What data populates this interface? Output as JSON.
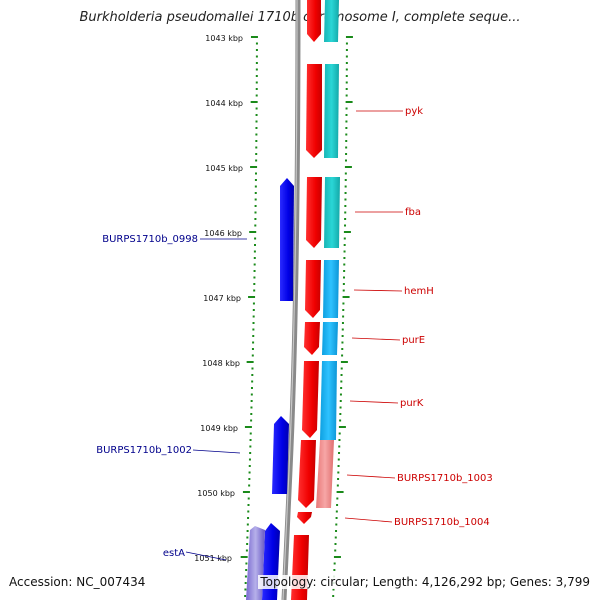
{
  "title": "Burkholderia pseudomallei 1710b chromosome I, complete seque...",
  "footer": {
    "accession": "Accession: NC_007434",
    "info": "Topology: circular; Length: 4,126,292 bp; Genes: 3,799"
  },
  "colors": {
    "forward_cds": "#0000e0",
    "reverse_cds": "#ff0000",
    "reverse_cds_light": "#f08080",
    "teal_feature": "#1fc7c7",
    "sky_feature": "#19b3f0",
    "light_feature": "#f4a0a0",
    "tick": "#1a8a1a",
    "backbone": "#888888",
    "forward_label": "#00008b",
    "reverse_label": "#cc0000"
  },
  "scale": {
    "ticks": [
      "1043 kbp",
      "1044 kbp",
      "1045 kbp",
      "1046 kbp",
      "1047 kbp",
      "1048 kbp",
      "1049 kbp",
      "1050 kbp",
      "1051 kbp"
    ]
  },
  "genes_forward": [
    {
      "label": "BURPS1710b_0998"
    },
    {
      "label": "BURPS1710b_1002"
    },
    {
      "label": "estA"
    }
  ],
  "genes_reverse": [
    {
      "label": "pyk"
    },
    {
      "label": "fba"
    },
    {
      "label": "hemH"
    },
    {
      "label": "purE"
    },
    {
      "label": "purK"
    },
    {
      "label": "BURPS1710b_1003"
    },
    {
      "label": "BURPS1710b_1004"
    }
  ]
}
